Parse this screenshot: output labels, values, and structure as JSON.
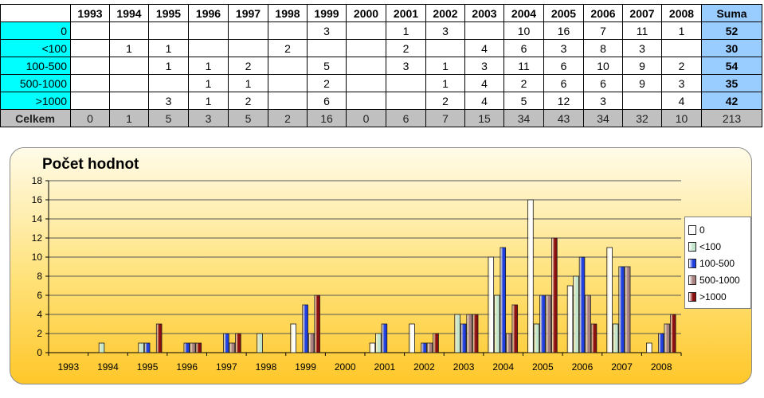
{
  "table": {
    "years": [
      "1993",
      "1994",
      "1995",
      "1996",
      "1997",
      "1998",
      "1999",
      "2000",
      "2001",
      "2002",
      "2003",
      "2004",
      "2005",
      "2006",
      "2007",
      "2008"
    ],
    "sum_header": "Suma",
    "rows": [
      {
        "label": "0",
        "cells": [
          "",
          "",
          "",
          "",
          "",
          "",
          "3",
          "",
          "1",
          "3",
          "",
          "10",
          "16",
          "7",
          "11",
          "1"
        ],
        "sum": "52"
      },
      {
        "label": "<100",
        "cells": [
          "",
          "1",
          "1",
          "",
          "",
          "2",
          "",
          "",
          "2",
          "",
          "4",
          "6",
          "3",
          "8",
          "3",
          ""
        ],
        "sum": "30"
      },
      {
        "label": "100-500",
        "cells": [
          "",
          "",
          "1",
          "1",
          "2",
          "",
          "5",
          "",
          "3",
          "1",
          "3",
          "11",
          "6",
          "10",
          "9",
          "2"
        ],
        "sum": "54"
      },
      {
        "label": "500-1000",
        "cells": [
          "",
          "",
          "",
          "1",
          "1",
          "",
          "2",
          "",
          "",
          "1",
          "4",
          "2",
          "6",
          "6",
          "9",
          "3"
        ],
        "sum": "35"
      },
      {
        "label": ">1000",
        "cells": [
          "",
          "",
          "3",
          "1",
          "2",
          "",
          "6",
          "",
          "",
          "2",
          "4",
          "5",
          "12",
          "3",
          "",
          "4"
        ],
        "sum": "42"
      }
    ],
    "total": {
      "label": "Celkem",
      "cells": [
        "0",
        "1",
        "5",
        "3",
        "5",
        "2",
        "16",
        "0",
        "6",
        "7",
        "15",
        "34",
        "43",
        "34",
        "32",
        "10"
      ],
      "sum": "213"
    }
  },
  "chart_data": {
    "type": "bar",
    "title": "Počet hodnot",
    "categories": [
      "1993",
      "1994",
      "1995",
      "1996",
      "1997",
      "1998",
      "1999",
      "2000",
      "2001",
      "2002",
      "2003",
      "2004",
      "2005",
      "2006",
      "2007",
      "2008"
    ],
    "ylim": [
      0,
      18
    ],
    "yticks": [
      "0",
      "2",
      "4",
      "6",
      "8",
      "10",
      "12",
      "14",
      "16",
      "18"
    ],
    "series": [
      {
        "name": "0",
        "color": "#ffffff",
        "values": [
          0,
          0,
          0,
          0,
          0,
          0,
          3,
          0,
          1,
          3,
          0,
          10,
          16,
          7,
          11,
          1
        ]
      },
      {
        "name": "<100",
        "color": "#c4e6cc",
        "values": [
          0,
          1,
          1,
          0,
          0,
          2,
          0,
          0,
          2,
          0,
          4,
          6,
          3,
          8,
          3,
          0
        ]
      },
      {
        "name": "100-500",
        "color": "#1f3fe0",
        "values": [
          0,
          0,
          1,
          1,
          2,
          0,
          5,
          0,
          3,
          1,
          3,
          11,
          6,
          10,
          9,
          2
        ]
      },
      {
        "name": "500-1000",
        "color": "#a88080",
        "values": [
          0,
          0,
          0,
          1,
          1,
          0,
          2,
          0,
          0,
          1,
          4,
          2,
          6,
          6,
          9,
          3
        ]
      },
      {
        "name": ">1000",
        "color": "#8b0f0f",
        "values": [
          0,
          0,
          3,
          1,
          2,
          0,
          6,
          0,
          0,
          2,
          4,
          5,
          12,
          3,
          0,
          4
        ]
      }
    ],
    "grid": true,
    "legend_position": "right"
  }
}
